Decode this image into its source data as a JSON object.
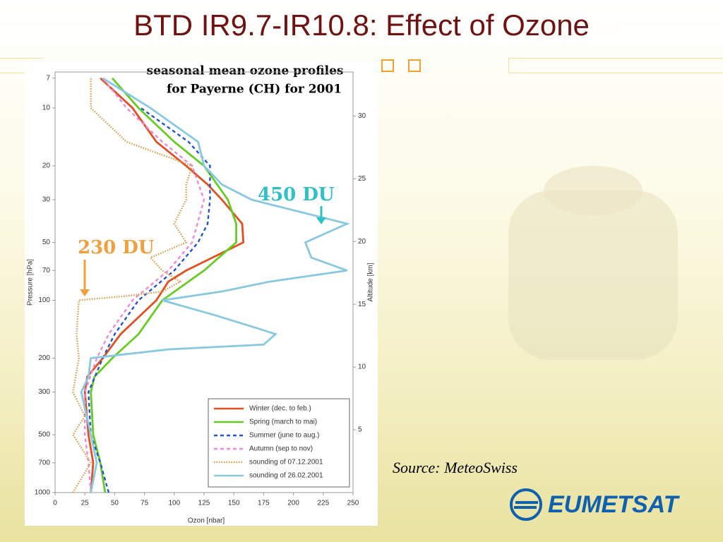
{
  "slide": {
    "title": "BTD IR9.7-IR10.8: Effect of Ozone",
    "source": "Source: MeteoSwiss",
    "logo": "EUMETSAT"
  },
  "chart_data": {
    "type": "line",
    "title": "seasonal mean ozone profiles",
    "subtitle": "for Payerne (CH) for 2001",
    "xlabel": "Ozon [nbar]",
    "ylabel": "Pressure [hPa]",
    "y2label": "Altitude [km]",
    "xlim": [
      0,
      250
    ],
    "xticks": [
      0,
      25,
      50,
      75,
      100,
      125,
      150,
      175,
      200,
      225,
      250
    ],
    "ylim": [
      1000,
      6.5
    ],
    "yticks": [
      7,
      10,
      20,
      30,
      50,
      70,
      100,
      200,
      300,
      500,
      700,
      1000
    ],
    "ylog": true,
    "y2lim": [
      0,
      33.5
    ],
    "y2ticks": [
      5,
      10,
      15,
      20,
      25,
      30
    ],
    "legend": "lower right",
    "annotations": [
      {
        "text": "230 DU",
        "color": "#f0a040"
      },
      {
        "text": "450 DU",
        "color": "#30c0c8"
      }
    ],
    "series": [
      {
        "name": "Winter (dec. to feb.)",
        "color": "#e05020",
        "style": "solid",
        "x": [
          30,
          32,
          28,
          25,
          27,
          40,
          55,
          85,
          95,
          110,
          158,
          157,
          140,
          128,
          110,
          85,
          65,
          38
        ],
        "values": [
          1000,
          700,
          500,
          300,
          250,
          200,
          150,
          100,
          80,
          70,
          50,
          40,
          30,
          25,
          20,
          15,
          10,
          7
        ]
      },
      {
        "name": "Spring (march to mai)",
        "color": "#66cc22",
        "style": "solid",
        "x": [
          42,
          38,
          32,
          30,
          33,
          48,
          70,
          90,
          125,
          152,
          152,
          145,
          125,
          100,
          70,
          48
        ],
        "values": [
          1000,
          700,
          500,
          300,
          250,
          200,
          150,
          100,
          70,
          50,
          40,
          30,
          20,
          15,
          10,
          7
        ]
      },
      {
        "name": "Summer (june to aug.)",
        "color": "#2255cc",
        "style": "dashed",
        "x": [
          45,
          38,
          30,
          28,
          40,
          50,
          70,
          100,
          120,
          128,
          130,
          130,
          112,
          72
        ],
        "values": [
          1000,
          700,
          500,
          300,
          200,
          150,
          100,
          70,
          50,
          40,
          30,
          20,
          15,
          10
        ]
      },
      {
        "name": "Autumn (sep to nov)",
        "color": "#ee88dd",
        "style": "dashed",
        "x": [
          30,
          28,
          25,
          25,
          35,
          45,
          65,
          95,
          115,
          125,
          115,
          90,
          60,
          40
        ],
        "values": [
          1000,
          700,
          500,
          300,
          200,
          150,
          100,
          70,
          50,
          30,
          20,
          15,
          10,
          7
        ]
      },
      {
        "name": "sounding of 07.12.2001",
        "color": "#dd9944",
        "style": "dotted",
        "x": [
          15,
          30,
          15,
          25,
          15,
          20,
          18,
          20,
          60,
          90,
          105,
          90,
          80,
          110,
          100,
          110,
          110,
          115,
          60,
          30,
          30
        ],
        "values": [
          1000,
          700,
          500,
          400,
          300,
          200,
          150,
          100,
          95,
          90,
          80,
          70,
          60,
          50,
          40,
          30,
          25,
          20,
          15,
          10,
          7
        ]
      },
      {
        "name": "sounding of 26.02.2001",
        "color": "#88c8e0",
        "style": "solid",
        "x": [
          30,
          35,
          30,
          22,
          28,
          30,
          95,
          175,
          185,
          170,
          135,
          90,
          140,
          180,
          245,
          215,
          210,
          245,
          165,
          140,
          125,
          120,
          80,
          40
        ],
        "values": [
          1000,
          700,
          500,
          300,
          250,
          200,
          180,
          170,
          150,
          140,
          120,
          100,
          90,
          80,
          70,
          60,
          50,
          40,
          30,
          25,
          20,
          15,
          10,
          7
        ]
      }
    ]
  }
}
